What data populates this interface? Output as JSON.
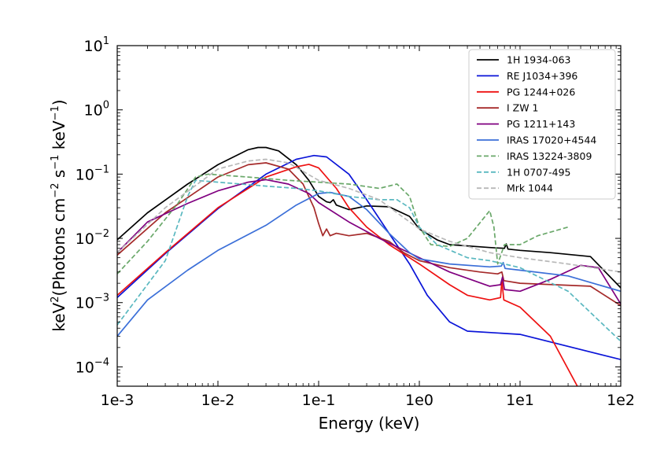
{
  "chart_data": {
    "type": "line",
    "title": "",
    "xlabel": "Energy (keV)",
    "ylabel": {
      "prefix": "keV",
      "prefix_sup": "2",
      "body": "(Photons cm",
      "sup1": "−2",
      "mid": " s",
      "sup2": "−1",
      "mid2": " keV",
      "sup3": "−1",
      "suffix": ")"
    },
    "x_scale": "log",
    "y_scale": "log",
    "xlim": [
      0.001,
      100
    ],
    "ylim": [
      5e-05,
      10
    ],
    "x_ticks": [
      {
        "value": 0.001,
        "label": "1e-3"
      },
      {
        "value": 0.01,
        "label": "1e-2"
      },
      {
        "value": 0.1,
        "label": "1e-1"
      },
      {
        "value": 1,
        "label": "1e0"
      },
      {
        "value": 10,
        "label": "1e1"
      },
      {
        "value": 100,
        "label": "1e2"
      }
    ],
    "y_ticks": [
      {
        "value": 0.0001,
        "base": "10",
        "exp": "−4"
      },
      {
        "value": 0.001,
        "base": "10",
        "exp": "−3"
      },
      {
        "value": 0.01,
        "base": "10",
        "exp": "−2"
      },
      {
        "value": 0.1,
        "base": "10",
        "exp": "−1"
      },
      {
        "value": 1,
        "base": "10",
        "exp": "0"
      },
      {
        "value": 10,
        "base": "10",
        "exp": "1"
      }
    ],
    "grid": false,
    "legend_position": "top-right",
    "series": [
      {
        "name": "1H 1934-063",
        "color": "#000000",
        "style": "solid",
        "points": [
          [
            0.001,
            0.0095
          ],
          [
            0.002,
            0.025
          ],
          [
            0.005,
            0.07
          ],
          [
            0.01,
            0.14
          ],
          [
            0.02,
            0.24
          ],
          [
            0.025,
            0.26
          ],
          [
            0.03,
            0.26
          ],
          [
            0.04,
            0.23
          ],
          [
            0.06,
            0.14
          ],
          [
            0.08,
            0.08
          ],
          [
            0.1,
            0.045
          ],
          [
            0.12,
            0.037
          ],
          [
            0.13,
            0.036
          ],
          [
            0.14,
            0.04
          ],
          [
            0.15,
            0.033
          ],
          [
            0.2,
            0.028
          ],
          [
            0.3,
            0.032
          ],
          [
            0.5,
            0.031
          ],
          [
            0.8,
            0.022
          ],
          [
            1.0,
            0.014
          ],
          [
            1.5,
            0.0095
          ],
          [
            2,
            0.008
          ],
          [
            5,
            0.0072
          ],
          [
            7,
            0.007
          ],
          [
            7.3,
            0.0082
          ],
          [
            7.6,
            0.0068
          ],
          [
            10,
            0.0065
          ],
          [
            20,
            0.006
          ],
          [
            50,
            0.0052
          ],
          [
            100,
            0.0017
          ]
        ]
      },
      {
        "name": "RE J1034+396",
        "color": "#0a14d8",
        "style": "solid",
        "points": [
          [
            0.001,
            0.0012
          ],
          [
            0.003,
            0.0058
          ],
          [
            0.01,
            0.029
          ],
          [
            0.03,
            0.1
          ],
          [
            0.06,
            0.17
          ],
          [
            0.09,
            0.195
          ],
          [
            0.12,
            0.185
          ],
          [
            0.2,
            0.1
          ],
          [
            0.3,
            0.04
          ],
          [
            0.5,
            0.012
          ],
          [
            0.8,
            0.004
          ],
          [
            1.2,
            0.0013
          ],
          [
            2,
            0.0005
          ],
          [
            3,
            0.00036
          ],
          [
            10,
            0.00032
          ],
          [
            100,
            0.00013
          ]
        ]
      },
      {
        "name": "PG 1244+026",
        "color": "#ee1111",
        "style": "solid",
        "points": [
          [
            0.001,
            0.0013
          ],
          [
            0.003,
            0.006
          ],
          [
            0.01,
            0.03
          ],
          [
            0.03,
            0.09
          ],
          [
            0.06,
            0.13
          ],
          [
            0.08,
            0.142
          ],
          [
            0.1,
            0.125
          ],
          [
            0.15,
            0.06
          ],
          [
            0.2,
            0.03
          ],
          [
            0.3,
            0.015
          ],
          [
            0.5,
            0.008
          ],
          [
            1,
            0.004
          ],
          [
            2,
            0.0019
          ],
          [
            3,
            0.0013
          ],
          [
            5,
            0.0011
          ],
          [
            6.4,
            0.0012
          ],
          [
            6.6,
            0.0022
          ],
          [
            6.9,
            0.0011
          ],
          [
            10,
            0.00085
          ],
          [
            20,
            0.0003
          ],
          [
            40,
            4e-05
          ]
        ]
      },
      {
        "name": "I ZW 1",
        "color": "#a52a2a",
        "style": "solid",
        "points": [
          [
            0.001,
            0.0055
          ],
          [
            0.003,
            0.025
          ],
          [
            0.01,
            0.09
          ],
          [
            0.02,
            0.14
          ],
          [
            0.03,
            0.15
          ],
          [
            0.05,
            0.12
          ],
          [
            0.07,
            0.07
          ],
          [
            0.09,
            0.03
          ],
          [
            0.1,
            0.017
          ],
          [
            0.11,
            0.011
          ],
          [
            0.12,
            0.014
          ],
          [
            0.13,
            0.011
          ],
          [
            0.15,
            0.012
          ],
          [
            0.2,
            0.011
          ],
          [
            0.3,
            0.012
          ],
          [
            0.5,
            0.009
          ],
          [
            0.7,
            0.006
          ],
          [
            1,
            0.0045
          ],
          [
            2,
            0.0035
          ],
          [
            4,
            0.003
          ],
          [
            6,
            0.0028
          ],
          [
            6.6,
            0.003
          ],
          [
            6.9,
            0.0022
          ],
          [
            10,
            0.002
          ],
          [
            50,
            0.0018
          ],
          [
            100,
            0.0009
          ]
        ]
      },
      {
        "name": "PG 1211+143",
        "color": "#800080",
        "style": "solid",
        "points": [
          [
            0.001,
            0.006
          ],
          [
            0.002,
            0.018
          ],
          [
            0.005,
            0.035
          ],
          [
            0.01,
            0.055
          ],
          [
            0.02,
            0.075
          ],
          [
            0.03,
            0.082
          ],
          [
            0.05,
            0.07
          ],
          [
            0.08,
            0.05
          ],
          [
            0.1,
            0.036
          ],
          [
            0.2,
            0.018
          ],
          [
            0.4,
            0.01
          ],
          [
            1,
            0.005
          ],
          [
            2,
            0.003
          ],
          [
            5,
            0.0018
          ],
          [
            6.4,
            0.0019
          ],
          [
            6.7,
            0.0025
          ],
          [
            7,
            0.0016
          ],
          [
            10,
            0.0015
          ],
          [
            20,
            0.0023
          ],
          [
            40,
            0.0038
          ],
          [
            60,
            0.0035
          ],
          [
            100,
            0.00095
          ]
        ]
      },
      {
        "name": "IRAS 17020+4544",
        "color": "#3b6fd8",
        "style": "solid",
        "points": [
          [
            0.001,
            0.0003
          ],
          [
            0.002,
            0.0011
          ],
          [
            0.005,
            0.0032
          ],
          [
            0.01,
            0.0065
          ],
          [
            0.03,
            0.016
          ],
          [
            0.06,
            0.033
          ],
          [
            0.1,
            0.05
          ],
          [
            0.13,
            0.052
          ],
          [
            0.2,
            0.045
          ],
          [
            0.3,
            0.028
          ],
          [
            0.5,
            0.012
          ],
          [
            0.8,
            0.006
          ],
          [
            1,
            0.0048
          ],
          [
            2,
            0.004
          ],
          [
            5,
            0.0036
          ],
          [
            6.5,
            0.0037
          ],
          [
            6.8,
            0.0042
          ],
          [
            7.1,
            0.0034
          ],
          [
            10,
            0.0032
          ],
          [
            30,
            0.0026
          ],
          [
            100,
            0.0015
          ]
        ]
      },
      {
        "name": "IRAS 13224-3809",
        "color": "#6aa86a",
        "style": "dashed",
        "points": [
          [
            0.001,
            0.0028
          ],
          [
            0.002,
            0.009
          ],
          [
            0.004,
            0.035
          ],
          [
            0.006,
            0.09
          ],
          [
            0.008,
            0.1
          ],
          [
            0.02,
            0.09
          ],
          [
            0.05,
            0.08
          ],
          [
            0.1,
            0.075
          ],
          [
            0.2,
            0.07
          ],
          [
            0.4,
            0.06
          ],
          [
            0.6,
            0.07
          ],
          [
            0.8,
            0.045
          ],
          [
            1,
            0.015
          ],
          [
            1.3,
            0.008
          ],
          [
            2,
            0.0075
          ],
          [
            3,
            0.01
          ],
          [
            5,
            0.027
          ],
          [
            5.5,
            0.015
          ],
          [
            6,
            0.004
          ],
          [
            7,
            0.008
          ],
          [
            10,
            0.008
          ],
          [
            15,
            0.011
          ],
          [
            30,
            0.015
          ]
        ]
      },
      {
        "name": "1H 0707-495",
        "color": "#5ab8c0",
        "style": "dashed",
        "points": [
          [
            0.001,
            0.00045
          ],
          [
            0.003,
            0.0045
          ],
          [
            0.005,
            0.045
          ],
          [
            0.006,
            0.08
          ],
          [
            0.01,
            0.075
          ],
          [
            0.03,
            0.065
          ],
          [
            0.06,
            0.06
          ],
          [
            0.1,
            0.055
          ],
          [
            0.2,
            0.045
          ],
          [
            0.4,
            0.04
          ],
          [
            0.6,
            0.04
          ],
          [
            0.8,
            0.03
          ],
          [
            1,
            0.015
          ],
          [
            1.5,
            0.008
          ],
          [
            3,
            0.005
          ],
          [
            5,
            0.0045
          ],
          [
            7,
            0.004
          ],
          [
            10,
            0.0035
          ],
          [
            30,
            0.0015
          ],
          [
            100,
            0.00025
          ]
        ]
      },
      {
        "name": "Mrk 1044",
        "color": "#b8b8b8",
        "style": "dashed",
        "points": [
          [
            0.001,
            0.006
          ],
          [
            0.003,
            0.03
          ],
          [
            0.01,
            0.12
          ],
          [
            0.02,
            0.16
          ],
          [
            0.03,
            0.17
          ],
          [
            0.05,
            0.15
          ],
          [
            0.1,
            0.08
          ],
          [
            0.2,
            0.06
          ],
          [
            0.4,
            0.04
          ],
          [
            0.6,
            0.025
          ],
          [
            1,
            0.014
          ],
          [
            2,
            0.009
          ],
          [
            5,
            0.006
          ],
          [
            10,
            0.005
          ],
          [
            30,
            0.004
          ],
          [
            100,
            0.003
          ]
        ]
      }
    ]
  }
}
